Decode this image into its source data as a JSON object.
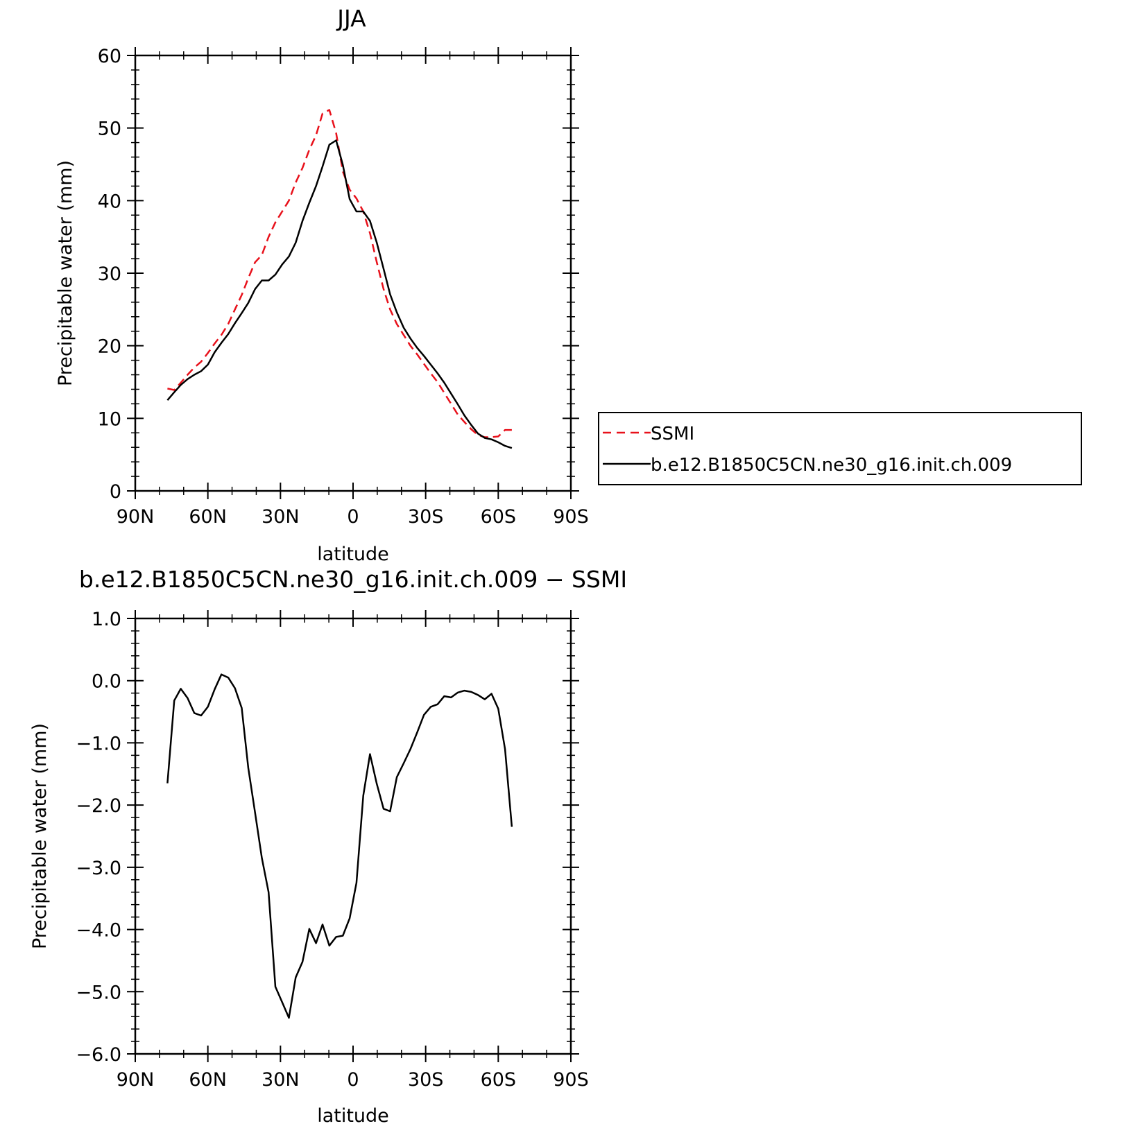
{
  "chart_data": [
    {
      "type": "line",
      "title": "JJA",
      "xlabel": "latitude",
      "ylabel": "Precipitable water (mm)",
      "ylim": [
        0,
        60
      ],
      "xlim": [
        90,
        -90
      ],
      "yticks": [
        {
          "value": 0,
          "label": "0"
        },
        {
          "value": 10,
          "label": "10"
        },
        {
          "value": 20,
          "label": "20"
        },
        {
          "value": 30,
          "label": "30"
        },
        {
          "value": 40,
          "label": "40"
        },
        {
          "value": 50,
          "label": "50"
        },
        {
          "value": 60,
          "label": "60"
        }
      ],
      "xticks": [
        {
          "value": 90,
          "label": "90N"
        },
        {
          "value": 60,
          "label": "60N"
        },
        {
          "value": 30,
          "label": "30N"
        },
        {
          "value": 0,
          "label": "0"
        },
        {
          "value": -30,
          "label": "30S"
        },
        {
          "value": -60,
          "label": "60S"
        },
        {
          "value": -90,
          "label": "90S"
        }
      ],
      "grid": false,
      "legend_position": "right",
      "series": [
        {
          "name": "SSMI",
          "color": "#e8111b",
          "dash": "dashed",
          "x": [
            76.7,
            73.9,
            71.2,
            68.4,
            65.6,
            62.8,
            60.0,
            57.2,
            54.4,
            51.6,
            48.8,
            46.0,
            43.3,
            40.5,
            37.7,
            34.9,
            32.1,
            29.3,
            26.5,
            23.7,
            20.9,
            18.1,
            15.3,
            12.6,
            9.8,
            7.0,
            4.2,
            1.4,
            -1.4,
            -4.2,
            -7.0,
            -9.8,
            -12.6,
            -15.3,
            -18.1,
            -20.9,
            -23.7,
            -26.5,
            -29.3,
            -32.1,
            -34.9,
            -37.7,
            -40.5,
            -43.3,
            -46.0,
            -48.8,
            -51.6,
            -54.4,
            -57.2,
            -60.0,
            -62.8,
            -65.6
          ],
          "y": [
            14.1,
            13.9,
            14.9,
            16.0,
            17.0,
            17.8,
            19.0,
            20.3,
            21.5,
            23.0,
            25.0,
            27.0,
            29.3,
            31.5,
            32.5,
            35.0,
            37.0,
            38.5,
            40.0,
            42.5,
            44.5,
            47.0,
            49.0,
            52.0,
            52.5,
            49.3,
            44.0,
            41.5,
            40.3,
            38.5,
            35.5,
            31.5,
            27.8,
            25.0,
            23.0,
            21.5,
            20.0,
            18.8,
            17.5,
            16.2,
            15.0,
            13.5,
            12.0,
            10.5,
            9.5,
            8.5,
            7.7,
            7.4,
            7.4,
            7.5,
            8.4,
            8.4
          ]
        },
        {
          "name": "b.e12.B1850C5CN.ne30_g16.init.ch.009",
          "color": "#000000",
          "dash": "solid",
          "x": [
            76.7,
            73.9,
            71.2,
            68.4,
            65.6,
            62.8,
            60.0,
            57.2,
            54.4,
            51.6,
            48.8,
            46.0,
            43.3,
            40.5,
            37.7,
            34.9,
            32.1,
            29.3,
            26.5,
            23.7,
            20.9,
            18.1,
            15.3,
            12.6,
            9.8,
            7.0,
            4.2,
            1.4,
            -1.4,
            -4.2,
            -7.0,
            -9.8,
            -12.6,
            -15.3,
            -18.1,
            -20.9,
            -23.7,
            -26.5,
            -29.3,
            -32.1,
            -34.9,
            -37.7,
            -40.5,
            -43.3,
            -46.0,
            -48.8,
            -51.6,
            -54.4,
            -57.2,
            -60.0,
            -62.8,
            -65.6
          ],
          "y": [
            12.5,
            13.6,
            14.6,
            15.4,
            16.0,
            16.5,
            17.4,
            19.1,
            20.4,
            21.6,
            23.1,
            24.5,
            25.9,
            27.8,
            29.0,
            29.0,
            29.8,
            31.2,
            32.3,
            34.2,
            37.2,
            39.7,
            42.0,
            44.7,
            47.7,
            48.3,
            44.9,
            40.2,
            38.5,
            38.5,
            37.2,
            34.2,
            30.6,
            27.1,
            24.6,
            22.5,
            21.0,
            19.7,
            18.6,
            17.4,
            16.2,
            14.9,
            13.4,
            11.9,
            10.4,
            9.1,
            7.9,
            7.3,
            7.1,
            6.7,
            6.2,
            5.9
          ]
        }
      ]
    },
    {
      "type": "line",
      "title": "b.e12.B1850C5CN.ne30_g16.init.ch.009 − SSMI",
      "xlabel": "latitude",
      "ylabel": "Precipitable water (mm)",
      "ylim": [
        -6,
        1
      ],
      "xlim": [
        90,
        -90
      ],
      "yticks": [
        {
          "value": 1,
          "label": "1.0"
        },
        {
          "value": 0,
          "label": "0.0"
        },
        {
          "value": -1,
          "label": "−1.0"
        },
        {
          "value": -2,
          "label": "−2.0"
        },
        {
          "value": -3,
          "label": "−3.0"
        },
        {
          "value": -4,
          "label": "−4.0"
        },
        {
          "value": -5,
          "label": "−5.0"
        },
        {
          "value": -6,
          "label": "−6.0"
        }
      ],
      "xticks": [
        {
          "value": 90,
          "label": "90N"
        },
        {
          "value": 60,
          "label": "60N"
        },
        {
          "value": 30,
          "label": "30N"
        },
        {
          "value": 0,
          "label": "0"
        },
        {
          "value": -30,
          "label": "30S"
        },
        {
          "value": -60,
          "label": "60S"
        },
        {
          "value": -90,
          "label": "90S"
        }
      ],
      "grid": false,
      "series": [
        {
          "color": "#000000",
          "dash": "solid",
          "x": [
            76.7,
            73.9,
            71.2,
            68.4,
            65.6,
            62.8,
            60.0,
            57.2,
            54.4,
            51.6,
            48.8,
            46.0,
            43.3,
            40.5,
            37.7,
            34.9,
            32.1,
            29.3,
            26.5,
            23.7,
            20.9,
            18.1,
            15.3,
            12.6,
            9.8,
            7.0,
            4.2,
            1.4,
            -1.4,
            -4.2,
            -7.0,
            -9.8,
            -12.6,
            -15.3,
            -18.1,
            -20.9,
            -23.7,
            -26.5,
            -29.3,
            -32.1,
            -34.9,
            -37.7,
            -40.5,
            -43.3,
            -46.0,
            -48.8,
            -51.6,
            -54.4,
            -57.2,
            -60.0,
            -62.8,
            -65.6
          ],
          "y": [
            -1.65,
            -0.32,
            -0.13,
            -0.28,
            -0.52,
            -0.56,
            -0.42,
            -0.14,
            0.1,
            0.05,
            -0.12,
            -0.44,
            -1.4,
            -2.12,
            -2.85,
            -3.4,
            -4.92,
            -5.17,
            -5.42,
            -4.77,
            -4.52,
            -3.99,
            -4.22,
            -3.92,
            -4.26,
            -4.12,
            -4.1,
            -3.82,
            -3.25,
            -1.85,
            -1.18,
            -1.66,
            -2.06,
            -2.1,
            -1.55,
            -1.33,
            -1.1,
            -0.83,
            -0.55,
            -0.42,
            -0.38,
            -0.25,
            -0.27,
            -0.19,
            -0.16,
            -0.18,
            -0.23,
            -0.3,
            -0.21,
            -0.45,
            -1.1,
            -2.35
          ]
        }
      ]
    }
  ]
}
